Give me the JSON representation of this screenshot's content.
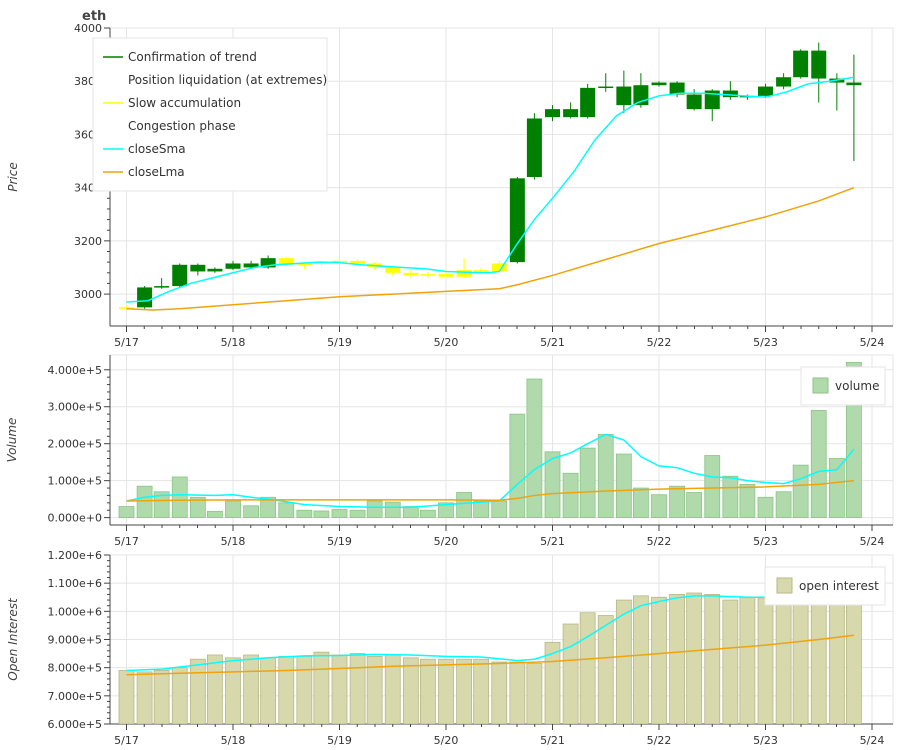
{
  "colors": {
    "confirmation": "#008000",
    "slow_accumulation": "#ffff00",
    "close_sma": "#00ffff",
    "close_lma": "#f0a30a",
    "volume_bar": "#b0d9ac",
    "volume_bar_edge": "#8cc487",
    "oi_bar": "#d8d8ad",
    "oi_bar_edge": "#b7b787",
    "grid": "#e5e5e5",
    "axis": "#444444"
  },
  "chart_data": [
    {
      "type": "candlestick",
      "title": "eth",
      "ylabel": "Price",
      "ylim": [
        2880,
        4000
      ],
      "yticks": [
        3000,
        3200,
        3400,
        3600,
        3800,
        4000
      ],
      "xlim": [
        -0.02,
        7.1
      ],
      "xticks": [
        0,
        1,
        2,
        3,
        4,
        5,
        6,
        7
      ],
      "xtick_labels": [
        "5/17",
        "5/18",
        "5/19",
        "5/20",
        "5/21",
        "5/22",
        "5/23",
        "5/24"
      ],
      "grid": true,
      "legend_position": "top-left",
      "legend": [
        {
          "label": "Confirmation of trend",
          "color": "#008000",
          "kind": "line"
        },
        {
          "label": "Position liquidation (at extremes)",
          "color": "",
          "kind": "none"
        },
        {
          "label": "Slow accumulation",
          "color": "#ffff00",
          "kind": "line"
        },
        {
          "label": "Congestion phase",
          "color": "",
          "kind": "none"
        },
        {
          "label": "closeSma",
          "color": "#00ffff",
          "kind": "line"
        },
        {
          "label": "closeLma",
          "color": "#f0a30a",
          "kind": "line"
        }
      ],
      "candles": [
        {
          "x": 0.0,
          "open": 2950,
          "high": 2955,
          "low": 2940,
          "close": 2945,
          "regime": "slow"
        },
        {
          "x": 0.17,
          "open": 2950,
          "high": 3030,
          "low": 2945,
          "close": 3025,
          "regime": "confirm"
        },
        {
          "x": 0.33,
          "open": 3025,
          "high": 3060,
          "low": 3020,
          "close": 3030,
          "regime": "confirm"
        },
        {
          "x": 0.5,
          "open": 3030,
          "high": 3115,
          "low": 3025,
          "close": 3110,
          "regime": "confirm"
        },
        {
          "x": 0.67,
          "open": 3110,
          "high": 3115,
          "low": 3070,
          "close": 3085,
          "regime": "confirm"
        },
        {
          "x": 0.83,
          "open": 3085,
          "high": 3100,
          "low": 3080,
          "close": 3095,
          "regime": "confirm"
        },
        {
          "x": 1.0,
          "open": 3095,
          "high": 3125,
          "low": 3090,
          "close": 3115,
          "regime": "confirm"
        },
        {
          "x": 1.17,
          "open": 3115,
          "high": 3125,
          "low": 3095,
          "close": 3100,
          "regime": "confirm"
        },
        {
          "x": 1.33,
          "open": 3100,
          "high": 3145,
          "low": 3095,
          "close": 3135,
          "regime": "confirm"
        },
        {
          "x": 1.5,
          "open": 3135,
          "high": 3140,
          "low": 3105,
          "close": 3110,
          "regime": "slow"
        },
        {
          "x": 1.67,
          "open": 3110,
          "high": 3120,
          "low": 3095,
          "close": 3115,
          "regime": "slow"
        },
        {
          "x": 1.83,
          "open": 3115,
          "high": 3125,
          "low": 3105,
          "close": 3120,
          "regime": "slow"
        },
        {
          "x": 2.0,
          "open": 3120,
          "high": 3130,
          "low": 3110,
          "close": 3125,
          "regime": "slow"
        },
        {
          "x": 2.17,
          "open": 3125,
          "high": 3130,
          "low": 3110,
          "close": 3115,
          "regime": "slow"
        },
        {
          "x": 2.33,
          "open": 3115,
          "high": 3120,
          "low": 3090,
          "close": 3100,
          "regime": "slow"
        },
        {
          "x": 2.5,
          "open": 3100,
          "high": 3105,
          "low": 3070,
          "close": 3080,
          "regime": "slow"
        },
        {
          "x": 2.67,
          "open": 3080,
          "high": 3090,
          "low": 3060,
          "close": 3070,
          "regime": "slow"
        },
        {
          "x": 2.83,
          "open": 3070,
          "high": 3085,
          "low": 3060,
          "close": 3075,
          "regime": "slow"
        },
        {
          "x": 3.0,
          "open": 3075,
          "high": 3090,
          "low": 3060,
          "close": 3065,
          "regime": "slow"
        },
        {
          "x": 3.17,
          "open": 3065,
          "high": 3135,
          "low": 3060,
          "close": 3090,
          "regime": "slow"
        },
        {
          "x": 3.33,
          "open": 3090,
          "high": 3100,
          "low": 3075,
          "close": 3085,
          "regime": "slow"
        },
        {
          "x": 3.5,
          "open": 3085,
          "high": 3125,
          "low": 3080,
          "close": 3115,
          "regime": "slow"
        },
        {
          "x": 3.67,
          "open": 3120,
          "high": 3440,
          "low": 3115,
          "close": 3435,
          "regime": "confirm"
        },
        {
          "x": 3.83,
          "open": 3440,
          "high": 3680,
          "low": 3430,
          "close": 3660,
          "regime": "confirm"
        },
        {
          "x": 4.0,
          "open": 3665,
          "high": 3710,
          "low": 3650,
          "close": 3695,
          "regime": "confirm"
        },
        {
          "x": 4.17,
          "open": 3695,
          "high": 3720,
          "low": 3660,
          "close": 3665,
          "regime": "confirm"
        },
        {
          "x": 4.33,
          "open": 3665,
          "high": 3790,
          "low": 3660,
          "close": 3775,
          "regime": "confirm"
        },
        {
          "x": 4.5,
          "open": 3775,
          "high": 3830,
          "low": 3760,
          "close": 3780,
          "regime": "confirm"
        },
        {
          "x": 4.67,
          "open": 3780,
          "high": 3840,
          "low": 3680,
          "close": 3710,
          "regime": "confirm"
        },
        {
          "x": 4.83,
          "open": 3710,
          "high": 3830,
          "low": 3700,
          "close": 3785,
          "regime": "confirm"
        },
        {
          "x": 5.0,
          "open": 3785,
          "high": 3800,
          "low": 3780,
          "close": 3795,
          "regime": "confirm"
        },
        {
          "x": 5.17,
          "open": 3795,
          "high": 3800,
          "low": 3740,
          "close": 3750,
          "regime": "confirm"
        },
        {
          "x": 5.33,
          "open": 3750,
          "high": 3770,
          "low": 3690,
          "close": 3695,
          "regime": "confirm"
        },
        {
          "x": 5.5,
          "open": 3695,
          "high": 3770,
          "low": 3650,
          "close": 3765,
          "regime": "confirm"
        },
        {
          "x": 5.67,
          "open": 3765,
          "high": 3800,
          "low": 3730,
          "close": 3740,
          "regime": "confirm"
        },
        {
          "x": 5.83,
          "open": 3740,
          "high": 3750,
          "low": 3730,
          "close": 3745,
          "regime": "confirm"
        },
        {
          "x": 6.0,
          "open": 3745,
          "high": 3790,
          "low": 3740,
          "close": 3780,
          "regime": "confirm"
        },
        {
          "x": 6.17,
          "open": 3780,
          "high": 3830,
          "low": 3770,
          "close": 3815,
          "regime": "confirm"
        },
        {
          "x": 6.33,
          "open": 3815,
          "high": 3920,
          "low": 3810,
          "close": 3915,
          "regime": "confirm"
        },
        {
          "x": 6.5,
          "open": 3915,
          "high": 3945,
          "low": 3720,
          "close": 3810,
          "regime": "confirm"
        },
        {
          "x": 6.67,
          "open": 3810,
          "high": 3830,
          "low": 3690,
          "close": 3795,
          "regime": "confirm"
        },
        {
          "x": 6.83,
          "open": 3795,
          "high": 3900,
          "low": 3500,
          "close": 3785,
          "regime": "confirm"
        }
      ],
      "series": [
        {
          "name": "closeSma",
          "x": [
            0,
            0.2,
            0.4,
            0.6,
            0.8,
            1.0,
            1.2,
            1.4,
            1.6,
            1.8,
            2.0,
            2.2,
            2.4,
            2.6,
            2.8,
            3.0,
            3.2,
            3.4,
            3.5,
            3.67,
            3.83,
            4.0,
            4.2,
            4.4,
            4.6,
            4.8,
            5.0,
            5.2,
            5.4,
            5.6,
            5.8,
            6.0,
            6.2,
            6.4,
            6.6,
            6.83
          ],
          "values": [
            2970,
            2975,
            3010,
            3040,
            3060,
            3080,
            3100,
            3110,
            3115,
            3120,
            3118,
            3110,
            3105,
            3100,
            3095,
            3085,
            3082,
            3080,
            3085,
            3190,
            3280,
            3360,
            3460,
            3580,
            3670,
            3720,
            3745,
            3755,
            3755,
            3750,
            3745,
            3740,
            3760,
            3790,
            3800,
            3815
          ]
        },
        {
          "name": "closeLma",
          "x": [
            0,
            0.25,
            0.5,
            1.0,
            1.5,
            2.0,
            2.5,
            3.0,
            3.5,
            3.67,
            4.0,
            4.5,
            5.0,
            5.5,
            6.0,
            6.5,
            6.83
          ],
          "values": [
            2945,
            2940,
            2945,
            2960,
            2975,
            2990,
            3000,
            3010,
            3020,
            3035,
            3070,
            3130,
            3190,
            3240,
            3290,
            3350,
            3400
          ]
        }
      ]
    },
    {
      "type": "bar",
      "ylabel": "Volume",
      "ylim": [
        -20000,
        440000
      ],
      "yticks": [
        0,
        100000,
        200000,
        300000,
        400000
      ],
      "ytick_labels": [
        "0.000e+0",
        "1.000e+5",
        "2.000e+5",
        "3.000e+5",
        "4.000e+5"
      ],
      "xtick_labels": [
        "5/17",
        "5/18",
        "5/19",
        "5/20",
        "5/21",
        "5/22",
        "5/23",
        "5/24"
      ],
      "grid": true,
      "legend_position": "top-right",
      "legend": [
        {
          "label": "volume",
          "color": "#b0d9ac"
        }
      ],
      "x": [
        0.0,
        0.17,
        0.33,
        0.5,
        0.67,
        0.83,
        1.0,
        1.17,
        1.33,
        1.5,
        1.67,
        1.83,
        2.0,
        2.17,
        2.33,
        2.5,
        2.67,
        2.83,
        3.0,
        3.17,
        3.33,
        3.5,
        3.67,
        3.83,
        4.0,
        4.17,
        4.33,
        4.5,
        4.67,
        4.83,
        5.0,
        5.17,
        5.33,
        5.5,
        5.67,
        5.83,
        6.0,
        6.17,
        6.33,
        6.5,
        6.67,
        6.83
      ],
      "values": [
        30000,
        85000,
        70000,
        110000,
        55000,
        17000,
        45000,
        32000,
        55000,
        40000,
        20000,
        18000,
        22000,
        20000,
        45000,
        42000,
        30000,
        20000,
        40000,
        68000,
        45000,
        45000,
        280000,
        375000,
        178000,
        120000,
        188000,
        225000,
        172000,
        80000,
        62000,
        85000,
        68000,
        168000,
        112000,
        90000,
        55000,
        70000,
        142000,
        290000,
        160000,
        420000
      ],
      "series": [
        {
          "name": "",
          "x": [
            0,
            0.17,
            0.33,
            0.5,
            0.67,
            0.83,
            1.0,
            1.17,
            1.33,
            1.5,
            1.67,
            2.0,
            2.33,
            2.67,
            3.0,
            3.33,
            3.5,
            3.67,
            3.83,
            4.0,
            4.17,
            4.33,
            4.5,
            4.67,
            4.83,
            5.0,
            5.17,
            5.33,
            5.5,
            5.67,
            5.83,
            6.0,
            6.17,
            6.33,
            6.5,
            6.67,
            6.83
          ],
          "values": [
            45000,
            55000,
            60000,
            62000,
            61000,
            60000,
            62000,
            55000,
            50000,
            43000,
            35000,
            30000,
            28000,
            28000,
            35000,
            42000,
            45000,
            90000,
            130000,
            160000,
            175000,
            200000,
            225000,
            210000,
            165000,
            140000,
            135000,
            120000,
            110000,
            108000,
            100000,
            95000,
            92000,
            105000,
            125000,
            130000,
            185000
          ]
        },
        {
          "name": "",
          "x": [
            0,
            0.5,
            1.0,
            1.5,
            2.0,
            2.5,
            3.0,
            3.5,
            3.67,
            3.83,
            4.0,
            4.5,
            5.0,
            5.5,
            6.0,
            6.5,
            6.83
          ],
          "values": [
            45000,
            47000,
            48000,
            48000,
            48000,
            48000,
            48000,
            47000,
            52000,
            60000,
            65000,
            72000,
            77000,
            80000,
            83000,
            90000,
            100000
          ]
        }
      ]
    },
    {
      "type": "bar",
      "ylabel": "Open Interest",
      "ylim": [
        600000,
        1200000
      ],
      "yticks": [
        600000,
        700000,
        800000,
        900000,
        1000000,
        1100000,
        1200000
      ],
      "ytick_labels": [
        "6.000e+5",
        "7.000e+5",
        "8.000e+5",
        "9.000e+5",
        "1.000e+6",
        "1.100e+6",
        "1.200e+6"
      ],
      "xtick_labels": [
        "5/17",
        "5/18",
        "5/19",
        "5/20",
        "5/21",
        "5/22",
        "5/23",
        "5/24"
      ],
      "grid": true,
      "legend_position": "top-right",
      "legend": [
        {
          "label": "open interest",
          "color": "#d8d8ad"
        }
      ],
      "x": [
        0.0,
        0.17,
        0.33,
        0.5,
        0.67,
        0.83,
        1.0,
        1.17,
        1.33,
        1.5,
        1.67,
        1.83,
        2.0,
        2.17,
        2.33,
        2.5,
        2.67,
        2.83,
        3.0,
        3.17,
        3.33,
        3.5,
        3.67,
        3.83,
        4.0,
        4.17,
        4.33,
        4.5,
        4.67,
        4.83,
        5.0,
        5.17,
        5.33,
        5.5,
        5.67,
        5.83,
        6.0,
        6.17,
        6.33,
        6.5,
        6.67,
        6.83
      ],
      "values": [
        790000,
        785000,
        790000,
        800000,
        830000,
        845000,
        835000,
        845000,
        835000,
        840000,
        840000,
        855000,
        845000,
        850000,
        840000,
        845000,
        835000,
        830000,
        830000,
        830000,
        830000,
        820000,
        820000,
        815000,
        890000,
        955000,
        995000,
        985000,
        1040000,
        1055000,
        1050000,
        1060000,
        1065000,
        1060000,
        1040000,
        1050000,
        1045000,
        1045000,
        1040000,
        1035000,
        1040000,
        1030000
      ],
      "series": [
        {
          "name": "",
          "x": [
            0,
            0.33,
            0.67,
            1.0,
            1.33,
            1.67,
            2.0,
            2.33,
            2.67,
            3.0,
            3.33,
            3.67,
            3.83,
            4.0,
            4.17,
            4.33,
            4.5,
            4.67,
            4.83,
            5.0,
            5.17,
            5.33,
            5.5,
            5.67,
            5.83,
            6.0
          ],
          "values": [
            790000,
            795000,
            810000,
            825000,
            835000,
            842000,
            843000,
            847000,
            845000,
            840000,
            838000,
            825000,
            830000,
            850000,
            875000,
            910000,
            950000,
            990000,
            1020000,
            1035000,
            1048000,
            1055000,
            1055000,
            1052000,
            1050000,
            1050000
          ]
        },
        {
          "name": "",
          "x": [
            0,
            0.5,
            1.0,
            1.5,
            2.0,
            2.5,
            3.0,
            3.5,
            4.0,
            4.5,
            5.0,
            5.5,
            6.0,
            6.5,
            6.83
          ],
          "values": [
            775000,
            780000,
            785000,
            790000,
            797000,
            805000,
            810000,
            815000,
            822000,
            835000,
            850000,
            865000,
            880000,
            900000,
            915000
          ]
        }
      ]
    }
  ]
}
